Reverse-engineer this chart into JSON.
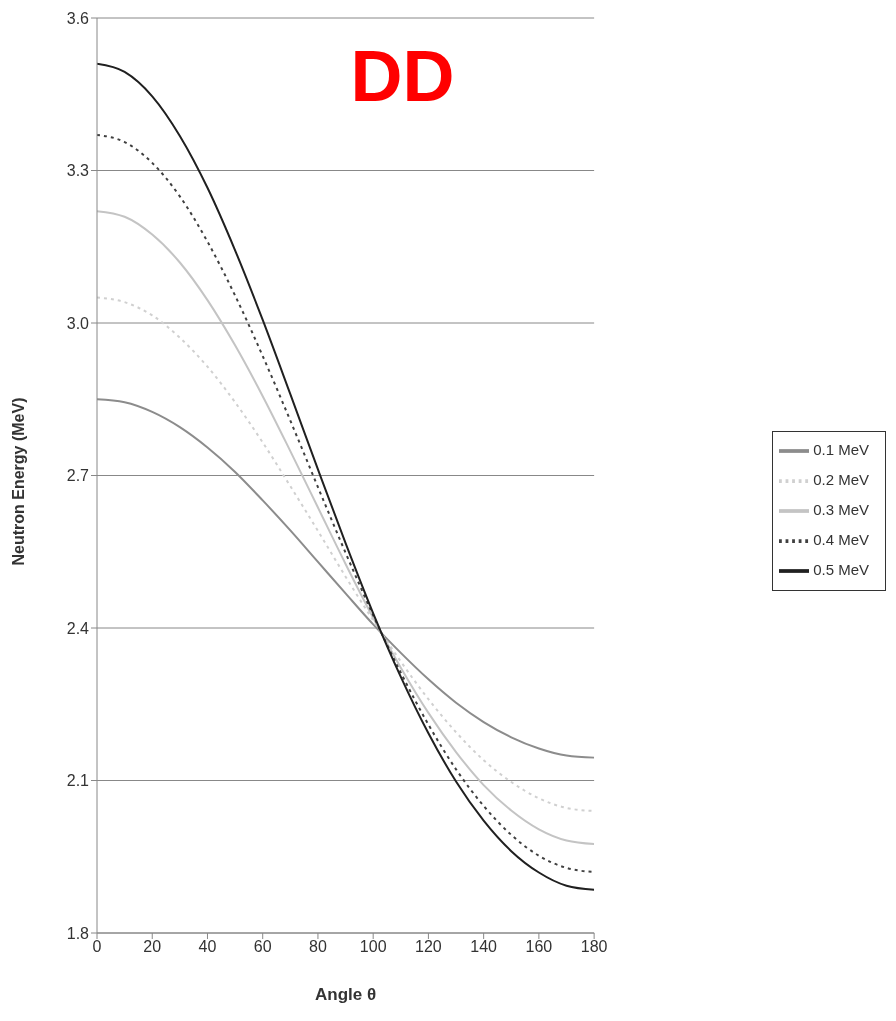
{
  "chart_data": {
    "type": "line",
    "title": "DD",
    "xlabel": "Angle θ",
    "ylabel": "Neutron Energy (MeV)",
    "x": [
      0,
      10,
      20,
      30,
      40,
      50,
      60,
      70,
      80,
      90,
      100,
      110,
      120,
      130,
      140,
      150,
      160,
      170,
      180
    ],
    "series": [
      {
        "name": "0.1 MeV",
        "color": "#8c8c8c",
        "line_style": "solid",
        "values": [
          2.85,
          2.844,
          2.825,
          2.795,
          2.755,
          2.707,
          2.651,
          2.592,
          2.53,
          2.468,
          2.407,
          2.351,
          2.299,
          2.253,
          2.215,
          2.185,
          2.163,
          2.149,
          2.145
        ]
      },
      {
        "name": "0.2 MeV",
        "color": "#d0d0d0",
        "line_style": "dotted",
        "values": [
          3.05,
          3.041,
          3.015,
          2.971,
          2.914,
          2.844,
          2.765,
          2.679,
          2.591,
          2.501,
          2.415,
          2.334,
          2.26,
          2.195,
          2.14,
          2.097,
          2.065,
          2.046,
          2.04
        ]
      },
      {
        "name": "0.3 MeV",
        "color": "#c4c4c4",
        "line_style": "solid",
        "values": [
          3.22,
          3.209,
          3.174,
          3.119,
          3.045,
          2.956,
          2.856,
          2.748,
          2.637,
          2.526,
          2.42,
          2.322,
          2.233,
          2.156,
          2.091,
          2.041,
          2.004,
          1.982,
          1.975
        ]
      },
      {
        "name": "0.4 MeV",
        "color": "#404040",
        "line_style": "dotted",
        "values": [
          3.37,
          3.356,
          3.315,
          3.249,
          3.16,
          3.054,
          2.935,
          2.808,
          2.677,
          2.548,
          2.425,
          2.312,
          2.21,
          2.122,
          2.05,
          1.993,
          1.952,
          1.928,
          1.92
        ]
      },
      {
        "name": "0.5 MeV",
        "color": "#202020",
        "line_style": "solid",
        "values": [
          3.51,
          3.494,
          3.446,
          3.368,
          3.266,
          3.143,
          3.006,
          2.86,
          2.712,
          2.567,
          2.429,
          2.304,
          2.193,
          2.098,
          2.021,
          1.961,
          1.919,
          1.893,
          1.885
        ]
      }
    ],
    "xlim": [
      0,
      180
    ],
    "xticks": [
      0,
      20,
      40,
      60,
      80,
      100,
      120,
      140,
      160,
      180
    ],
    "ylim": [
      1.8,
      3.6
    ],
    "yticks": [
      1.8,
      2.1,
      2.4,
      2.7,
      {
        "value": 3,
        "label": "3.0"
      },
      3.3,
      3.6
    ],
    "grid": "y",
    "legend": "right",
    "marker": "none"
  }
}
